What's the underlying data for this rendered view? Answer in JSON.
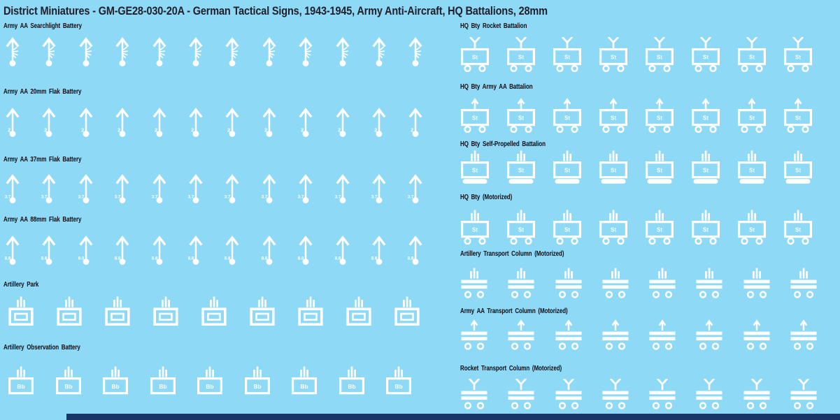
{
  "title": "District Miniatures - GM-GE28-030-20A - German Tactical Signs, 1943-1945, Army Anti-Aircraft, HQ Battalions, 28mm",
  "colors": {
    "background": "#8ed9f6",
    "icon": "#ffffff",
    "title_text": "#20202a",
    "label_text": "#0d0d14",
    "bottom_bar": "#1a3668"
  },
  "sections": [
    {
      "id": "searchlight",
      "label": "Army AA Searchlight Battery",
      "icon": "searchlight-arrow",
      "count": 12,
      "symbol_text": ""
    },
    {
      "id": "flak20",
      "label": "Army AA 20mm Flak Battery",
      "icon": "flak-arrow",
      "count": 12,
      "symbol_text": "2"
    },
    {
      "id": "flak37",
      "label": "Army AA 37mm Flak Battery",
      "icon": "flak-arrow",
      "count": 12,
      "symbol_text": "3.7"
    },
    {
      "id": "flak88",
      "label": "Army AA 88mm Flak Battery",
      "icon": "flak-arrow",
      "count": 12,
      "symbol_text": "8.8"
    },
    {
      "id": "artillery-park",
      "label": "Artillery Park",
      "icon": "artillery-park",
      "count": 9,
      "symbol_text": ""
    },
    {
      "id": "artillery-obs",
      "label": "Artillery Observation Battery",
      "icon": "observation-box",
      "count": 9,
      "symbol_text": "Bb"
    },
    {
      "id": "hq-rocket",
      "label": "HQ Bty Rocket Battalion",
      "icon": "hq-fork-wheels",
      "count": 8,
      "symbol_text": "St"
    },
    {
      "id": "hq-aa",
      "label": "HQ Bty Army AA Battalion",
      "icon": "hq-arrow-wheels",
      "count": 8,
      "symbol_text": "St"
    },
    {
      "id": "hq-sp",
      "label": "HQ Bty Self-Propelled Battalion",
      "icon": "hq-bars-track",
      "count": 8,
      "symbol_text": "St"
    },
    {
      "id": "hq-mot",
      "label": "HQ Bty (Motorized)",
      "icon": "hq-bars-wheels",
      "count": 8,
      "symbol_text": "St"
    },
    {
      "id": "arty-transport",
      "label": "Artillery Transport Column (Motorized)",
      "icon": "transport-bars",
      "count": 8,
      "symbol_text": ""
    },
    {
      "id": "aa-transport",
      "label": "Army AA Transport Column (Motorized)",
      "icon": "transport-arrow",
      "count": 8,
      "symbol_text": ""
    },
    {
      "id": "rocket-transport",
      "label": "Rocket Transport Column (Motorized)",
      "icon": "transport-fork",
      "count": 8,
      "symbol_text": ""
    }
  ]
}
